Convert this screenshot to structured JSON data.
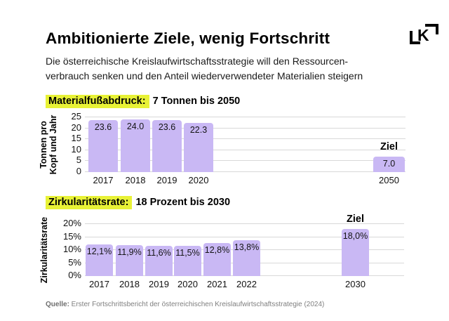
{
  "header": {
    "title": "Ambitionierte Ziele, wenig Fortschritt",
    "logo_letter": "K"
  },
  "subtitle": {
    "line1": "Die österreichische Kreislaufwirtschaftsstrategie will den Ressourcen-",
    "line2": "verbrauch senken und den Anteil wiederverwendeter Materialien steigern"
  },
  "colors": {
    "bar": "#c9b8f4",
    "highlight": "#e8f236",
    "grid": "#d8d8d8",
    "text": "#000000",
    "source_text": "#7f7f7f"
  },
  "chart_data": [
    {
      "type": "bar",
      "title_highlight": "Materialfußabdruck:",
      "title_rest": "7 Tonnen bis 2050",
      "ylabel_lines": [
        "Tonnen  pro",
        "Kopf und Jahr"
      ],
      "ylim": [
        0,
        25
      ],
      "yticks": [
        "0",
        "5",
        "10",
        "15",
        "20",
        "25"
      ],
      "grid": true,
      "categories": [
        "2017",
        "2018",
        "2019",
        "2020",
        "2050"
      ],
      "values": [
        23.6,
        24.0,
        23.6,
        22.3,
        7.0
      ],
      "value_labels": [
        "23.6",
        "24.0",
        "23.6",
        "22.3",
        "7.0"
      ],
      "target_label": "Ziel",
      "target_index": 4
    },
    {
      "type": "bar",
      "title_highlight": "Zirkularitätsrate:",
      "title_rest": "18 Prozent bis 2030",
      "ylabel_lines": [
        "Zirkularitätsrate"
      ],
      "ylim": [
        0,
        20
      ],
      "yticks": [
        "0%",
        "5%",
        "10%",
        "15%",
        "20%"
      ],
      "grid": true,
      "categories": [
        "2017",
        "2018",
        "2019",
        "2020",
        "2021",
        "2022",
        "2030"
      ],
      "values": [
        12.1,
        11.9,
        11.6,
        11.5,
        12.8,
        13.8,
        18.0
      ],
      "value_labels": [
        "12,1%",
        "11,9%",
        "11,6%",
        "11,5%",
        "12,8%",
        "13,8%",
        "18,0%"
      ],
      "target_label": "Ziel",
      "target_index": 6
    }
  ],
  "source": {
    "prefix": "Quelle:",
    "text": " Erster Fortschrittsbericht der österreichischen Kreislaufwirtschaftsstrategie (2024)"
  }
}
